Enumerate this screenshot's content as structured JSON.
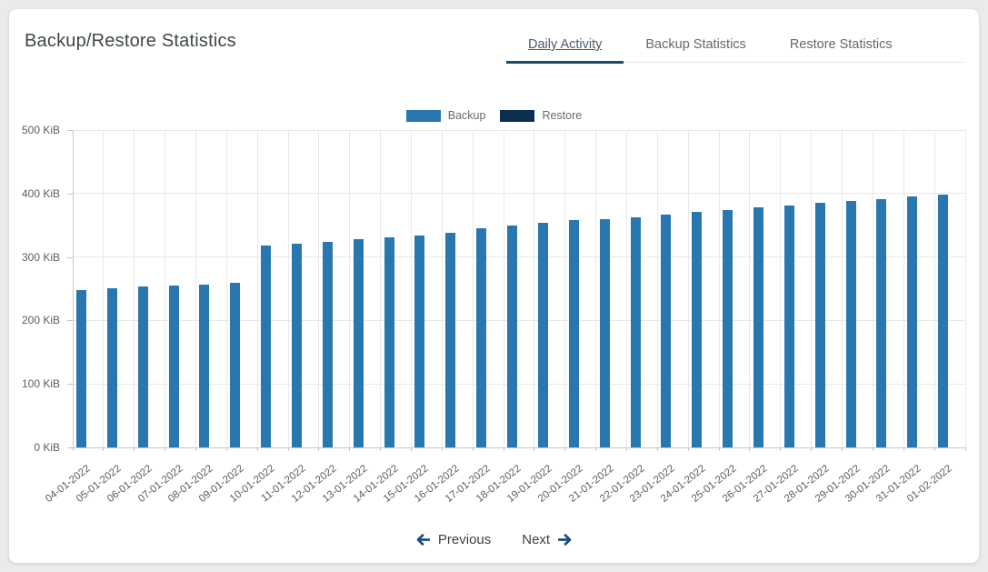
{
  "page": {
    "title": "Backup/Restore Statistics"
  },
  "tabs": [
    {
      "label": "Daily Activity",
      "active": true
    },
    {
      "label": "Backup Statistics",
      "active": false
    },
    {
      "label": "Restore Statistics",
      "active": false
    }
  ],
  "pagination": {
    "previous_label": "Previous",
    "next_label": "Next"
  },
  "colors": {
    "backup": "#2878af",
    "restore": "#0d2f4f",
    "tab_active_bar": "#1d4a66",
    "arrow": "#17507e"
  },
  "chart_data": {
    "type": "bar",
    "title": "",
    "xlabel": "",
    "ylabel": "",
    "unit": "KiB",
    "ylim": [
      0,
      500
    ],
    "yticks": [
      "0 KiB",
      "100 KiB",
      "200 KiB",
      "300 KiB",
      "400 KiB",
      "500 KiB"
    ],
    "grid": true,
    "legend_position": "top",
    "categories": [
      "04-01-2022",
      "05-01-2022",
      "06-01-2022",
      "07-01-2022",
      "08-01-2022",
      "09-01-2022",
      "10-01-2022",
      "11-01-2022",
      "12-01-2022",
      "13-01-2022",
      "14-01-2022",
      "15-01-2022",
      "16-01-2022",
      "17-01-2022",
      "18-01-2022",
      "19-01-2022",
      "20-01-2022",
      "21-01-2022",
      "22-01-2022",
      "23-01-2022",
      "24-01-2022",
      "25-01-2022",
      "26-01-2022",
      "27-01-2022",
      "28-01-2022",
      "29-01-2022",
      "30-01-2022",
      "31-01-2022",
      "01-02-2022"
    ],
    "series": [
      {
        "name": "Backup",
        "color": "#2878af",
        "values": [
          248,
          251,
          253,
          255,
          257,
          260,
          318,
          321,
          324,
          328,
          331,
          334,
          338,
          345,
          350,
          354,
          358,
          360,
          363,
          367,
          371,
          374,
          378,
          381,
          385,
          388,
          391,
          395,
          398
        ]
      },
      {
        "name": "Restore",
        "color": "#0d2f4f",
        "values": [
          0,
          0,
          0,
          0,
          0,
          0,
          0,
          0,
          0,
          0,
          0,
          0,
          0,
          0,
          0,
          0,
          0,
          0,
          0,
          0,
          0,
          0,
          0,
          0,
          0,
          0,
          0,
          0,
          0
        ]
      }
    ]
  }
}
